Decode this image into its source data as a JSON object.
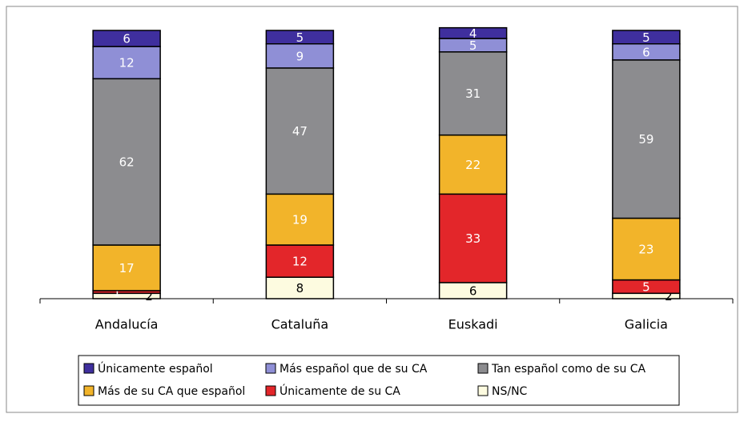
{
  "chart_data": {
    "type": "stacked_bar",
    "categories": [
      "Andalucía",
      "Cataluña",
      "Euskadi",
      "Galicia"
    ],
    "series": [
      {
        "name": "Únicamente español",
        "color": "#3f2f9e",
        "values": [
          6,
          5,
          4,
          5
        ]
      },
      {
        "name": "Más español que de su CA",
        "color": "#8f8fd6",
        "values": [
          12,
          9,
          5,
          6
        ]
      },
      {
        "name": "Tan español como de su CA",
        "color": "#8c8c8f",
        "values": [
          62,
          47,
          31,
          59
        ]
      },
      {
        "name": "Más de su CA que español",
        "color": "#f2b42a",
        "values": [
          17,
          19,
          22,
          23
        ]
      },
      {
        "name": "Únicamente de su CA",
        "color": "#e3262a",
        "values": [
          1,
          12,
          33,
          5
        ]
      },
      {
        "name": "NS/NC",
        "color": "#fdfbe0",
        "values": [
          2,
          8,
          6,
          2
        ]
      }
    ],
    "ylim": [
      0,
      100
    ]
  }
}
